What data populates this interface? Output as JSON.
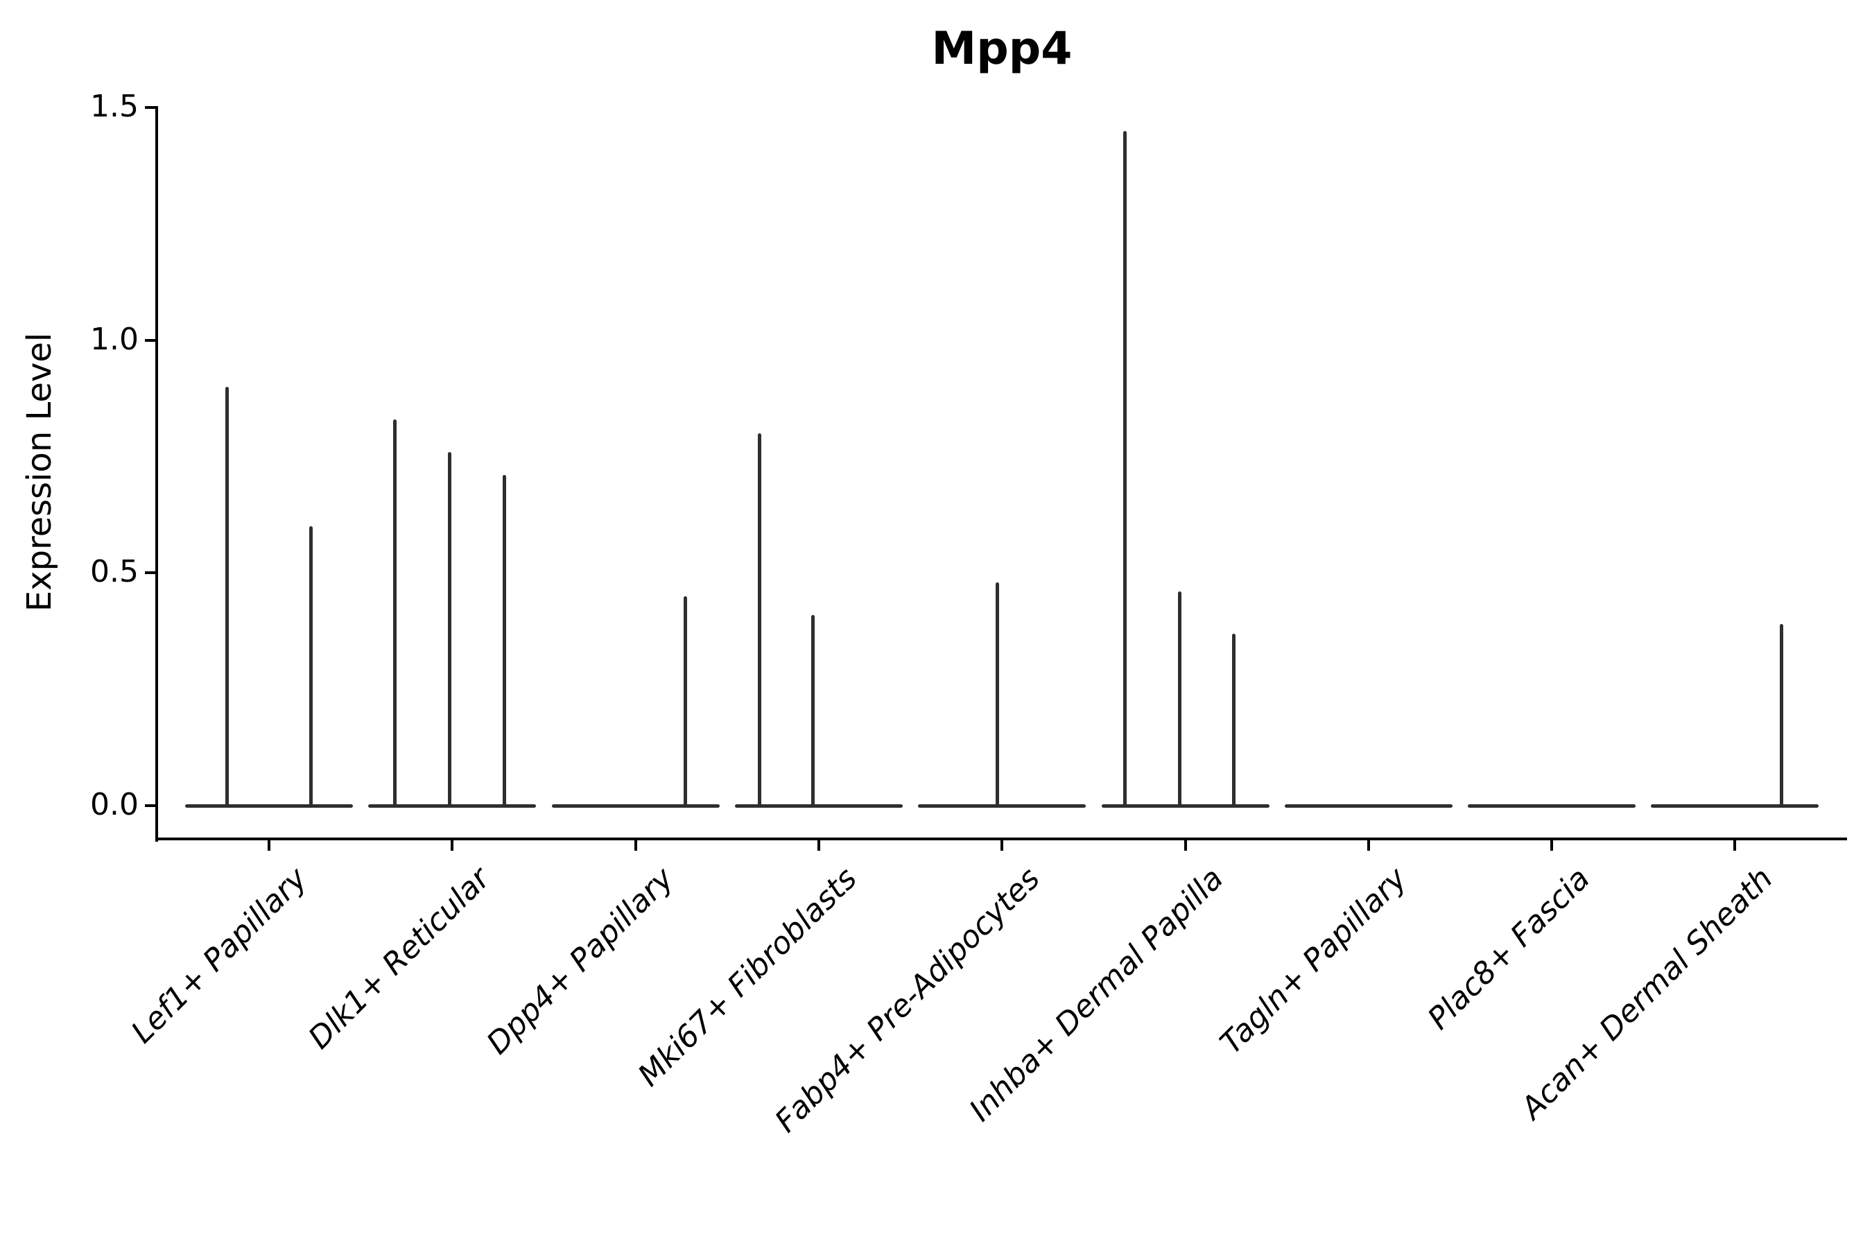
{
  "title": "Mpp4",
  "ylabel": "Expression Level",
  "chart_data": {
    "type": "violin",
    "title": "Mpp4",
    "xlabel": "",
    "ylabel": "Expression Level",
    "ylim": [
      0,
      1.5
    ],
    "grid": false,
    "legend": "none",
    "yticks": [
      {
        "label": "0.0",
        "value": 0.0
      },
      {
        "label": "0.5",
        "value": 0.5
      },
      {
        "label": "1.0",
        "value": 1.0
      },
      {
        "label": "1.5",
        "value": 1.5
      }
    ],
    "categories": [
      "Lef1+ Papillary",
      "Dlk1+ Reticular",
      "Dpp4+ Papillary",
      "Mki67+ Fibroblasts",
      "Fabp4+ Pre-Adipocytes",
      "Inhba+ Dermal Papilla",
      "Tagln+ Papillary",
      "Plac8+ Fascia",
      "Acan+ Dermal Sheath"
    ],
    "groups": [
      {
        "category": "Lef1+ Papillary",
        "spikes": [
          {
            "offset": -61,
            "value": 0.9
          },
          {
            "offset": 60,
            "value": 0.6
          }
        ]
      },
      {
        "category": "Dlk1+ Reticular",
        "spikes": [
          {
            "offset": -83,
            "value": 0.83
          },
          {
            "offset": -4,
            "value": 0.76
          },
          {
            "offset": 75,
            "value": 0.71
          }
        ]
      },
      {
        "category": "Dpp4+ Papillary",
        "spikes": [
          {
            "offset": 72,
            "value": 0.45
          }
        ]
      },
      {
        "category": "Mki67+ Fibroblasts",
        "spikes": [
          {
            "offset": -85,
            "value": 0.8
          },
          {
            "offset": -8,
            "value": 0.41
          }
        ]
      },
      {
        "category": "Fabp4+ Pre-Adipocytes",
        "spikes": [
          {
            "offset": -7,
            "value": 0.48
          }
        ]
      },
      {
        "category": "Inhba+ Dermal Papilla",
        "spikes": [
          {
            "offset": -87,
            "value": 1.45
          },
          {
            "offset": -8,
            "value": 0.46
          },
          {
            "offset": 70,
            "value": 0.37
          }
        ]
      },
      {
        "category": "Tagln+ Papillary",
        "spikes": []
      },
      {
        "category": "Plac8+ Fascia",
        "spikes": []
      },
      {
        "category": "Acan+ Dermal Sheath",
        "spikes": [
          {
            "offset": 67,
            "value": 0.39
          }
        ]
      }
    ]
  },
  "colors": {
    "violin": "#2e2e2e",
    "axis": "#000000",
    "text": "#000000",
    "background": "#ffffff"
  }
}
